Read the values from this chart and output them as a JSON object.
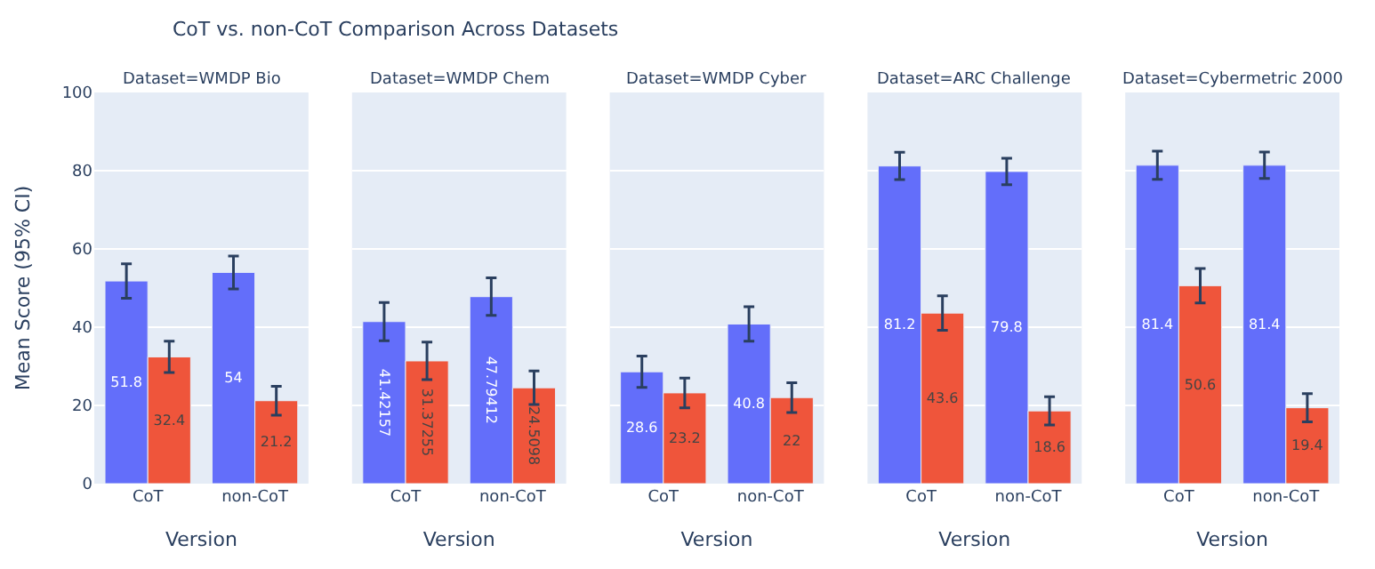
{
  "chart_data": [
    {
      "type": "bar",
      "title": "Dataset=WMDP Bio",
      "annotations": [
        "CoT vs. non-CoT Comparison Across Datasets"
      ],
      "xlabel": "Version",
      "ylabel": "Mean Score (95% CI)",
      "categories": [
        "CoT",
        "non-CoT"
      ],
      "series": [
        {
          "color": "#636efa",
          "values": [
            51.8,
            54
          ],
          "errors": [
            4.4,
            4.2
          ]
        },
        {
          "color": "#ef553b",
          "values": [
            32.4,
            21.2
          ],
          "errors": [
            4.0,
            3.7
          ]
        }
      ],
      "ylim": [
        0,
        100
      ],
      "yticks": [
        0,
        20,
        40,
        60,
        80,
        100
      ],
      "grid": "y",
      "data_labels": true
    },
    {
      "type": "bar",
      "title": "Dataset=WMDP Chem",
      "xlabel": "Version",
      "categories": [
        "CoT",
        "non-CoT"
      ],
      "series": [
        {
          "color": "#636efa",
          "values": [
            41.42157,
            47.79412
          ],
          "errors": [
            4.9,
            4.8
          ]
        },
        {
          "color": "#ef553b",
          "values": [
            31.37255,
            24.5098
          ],
          "errors": [
            4.8,
            4.3
          ]
        }
      ],
      "ylim": [
        0,
        100
      ],
      "yticks": [
        0,
        20,
        40,
        60,
        80,
        100
      ],
      "grid": "y",
      "data_labels": true,
      "tick_labels": "x"
    },
    {
      "type": "bar",
      "title": "Dataset=WMDP Cyber",
      "xlabel": "Version",
      "categories": [
        "CoT",
        "non-CoT"
      ],
      "series": [
        {
          "color": "#636efa",
          "values": [
            28.6,
            40.8
          ],
          "errors": [
            4.0,
            4.4
          ]
        },
        {
          "color": "#ef553b",
          "values": [
            23.2,
            22
          ],
          "errors": [
            3.8,
            3.8
          ]
        }
      ],
      "ylim": [
        0,
        100
      ],
      "yticks": [
        0,
        20,
        40,
        60,
        80,
        100
      ],
      "grid": "y",
      "data_labels": true,
      "tick_labels": "x"
    },
    {
      "type": "bar",
      "title": "Dataset=ARC Challenge",
      "xlabel": "Version",
      "categories": [
        "CoT",
        "non-CoT"
      ],
      "series": [
        {
          "color": "#636efa",
          "values": [
            81.2,
            79.8
          ],
          "errors": [
            3.5,
            3.4
          ]
        },
        {
          "color": "#ef553b",
          "values": [
            43.6,
            18.6
          ],
          "errors": [
            4.4,
            3.6
          ]
        }
      ],
      "ylim": [
        0,
        100
      ],
      "yticks": [
        0,
        20,
        40,
        60,
        80,
        100
      ],
      "grid": "y",
      "data_labels": true,
      "tick_labels": "x"
    },
    {
      "type": "bar",
      "title": "Dataset=Cybermetric 2000",
      "xlabel": "Version",
      "categories": [
        "CoT",
        "non-CoT"
      ],
      "series": [
        {
          "color": "#636efa",
          "values": [
            81.4,
            81.4
          ],
          "errors": [
            3.6,
            3.4
          ]
        },
        {
          "color": "#ef553b",
          "values": [
            50.6,
            19.4
          ],
          "errors": [
            4.4,
            3.6
          ]
        }
      ],
      "ylim": [
        0,
        100
      ],
      "yticks": [
        0,
        20,
        40,
        60,
        80,
        100
      ],
      "grid": "y",
      "data_labels": true,
      "tick_labels": "x"
    }
  ]
}
